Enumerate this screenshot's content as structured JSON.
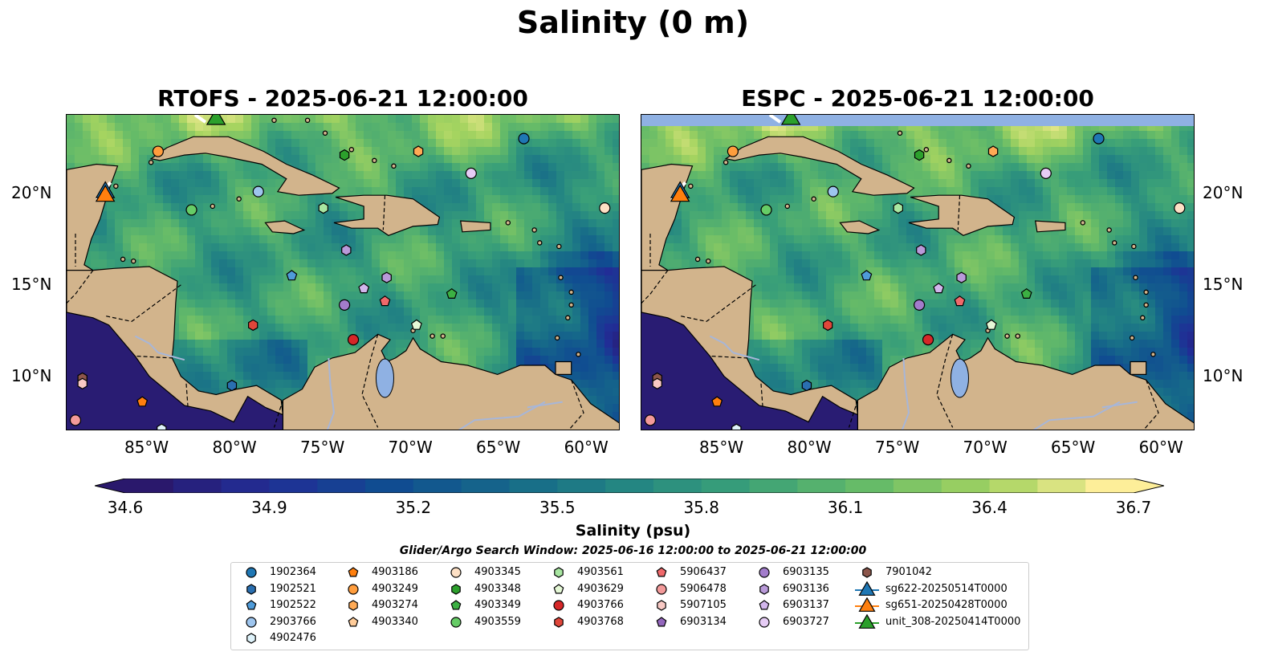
{
  "figure": {
    "suptitle": "Salinity (0 m)",
    "panels": [
      {
        "title": "RTOFS - 2025-06-21 12:00:00",
        "model": "RTOFS"
      },
      {
        "title": "ESPC - 2025-06-21 12:00:00",
        "model": "ESPC"
      }
    ],
    "lon_labels": [
      "85°W",
      "80°W",
      "75°W",
      "70°W",
      "65°W",
      "60°W"
    ],
    "lat_labels": [
      "20°N",
      "15°N",
      "10°N"
    ],
    "map_extent": {
      "lon": [
        -89.7,
        -58.2
      ],
      "lat": [
        7,
        24.3
      ]
    },
    "colorbar": {
      "title": "Salinity (psu)",
      "tick_labels": [
        "34.6",
        "34.9",
        "35.2",
        "35.5",
        "35.8",
        "36.1",
        "36.4",
        "36.7"
      ],
      "range": [
        34.6,
        36.7
      ],
      "colormap": "haline",
      "extend": "both"
    },
    "search_window": "Glider/Argo Search Window: 2025-06-16 12:00:00 to 2025-06-21 12:00:00",
    "colors": {
      "land": "#d2b48c",
      "lakes": "#8fb1e3",
      "water_fill_top_espc": "#8fb1e3"
    }
  },
  "legend": {
    "items": [
      {
        "id": "1902364",
        "marker": "circle",
        "color": "#1f77b4"
      },
      {
        "id": "1902521",
        "marker": "hexagon",
        "color": "#2a6fb0"
      },
      {
        "id": "1902522",
        "marker": "pentagon",
        "color": "#4f9bd9"
      },
      {
        "id": "2903766",
        "marker": "circle",
        "color": "#9ec5ee"
      },
      {
        "id": "4902476",
        "marker": "hexagon",
        "color": "#dff3fb"
      },
      {
        "id": "4903186",
        "marker": "pentagon",
        "color": "#ff7f0e"
      },
      {
        "id": "4903249",
        "marker": "circle",
        "color": "#ff9d3d"
      },
      {
        "id": "4903274",
        "marker": "hexagon",
        "color": "#ffaa55"
      },
      {
        "id": "4903340",
        "marker": "pentagon",
        "color": "#ffcc99"
      },
      {
        "id": "4903345",
        "marker": "circle",
        "color": "#fde0c5"
      },
      {
        "id": "4903348",
        "marker": "hexagon",
        "color": "#2ca02c"
      },
      {
        "id": "4903349",
        "marker": "pentagon",
        "color": "#3cb043"
      },
      {
        "id": "4903559",
        "marker": "circle",
        "color": "#66cc66"
      },
      {
        "id": "4903561",
        "marker": "hexagon",
        "color": "#a8e6a1"
      },
      {
        "id": "4903629",
        "marker": "pentagon",
        "color": "#e5f8d6"
      },
      {
        "id": "4903766",
        "marker": "circle",
        "color": "#d62728"
      },
      {
        "id": "4903768",
        "marker": "hexagon",
        "color": "#e0463a"
      },
      {
        "id": "5906437",
        "marker": "pentagon",
        "color": "#f0696b"
      },
      {
        "id": "5906478",
        "marker": "circle",
        "color": "#f39a9a"
      },
      {
        "id": "5907105",
        "marker": "hexagon",
        "color": "#f8c9c4"
      },
      {
        "id": "6903134",
        "marker": "pentagon",
        "color": "#9467bd"
      },
      {
        "id": "6903135",
        "marker": "circle",
        "color": "#a27ccb"
      },
      {
        "id": "6903136",
        "marker": "hexagon",
        "color": "#b99ad9"
      },
      {
        "id": "6903137",
        "marker": "pentagon",
        "color": "#d2b6ec"
      },
      {
        "id": "6903727",
        "marker": "circle",
        "color": "#e6ccf5"
      },
      {
        "id": "7901042",
        "marker": "hexagon",
        "color": "#8c564b"
      },
      {
        "id": "sg622-20250514T0000",
        "marker": "triangle-line",
        "color": "#1f77b4"
      },
      {
        "id": "sg651-20250428T0000",
        "marker": "triangle-line",
        "color": "#ff7f0e"
      },
      {
        "id": "unit_308-20250414T0000",
        "marker": "triangle-line",
        "color": "#2ca02c"
      }
    ]
  },
  "observations": [
    {
      "id": "1902364",
      "lon": -63.7,
      "lat": 23.0
    },
    {
      "id": "4903249",
      "lon": -84.5,
      "lat": 22.3
    },
    {
      "id": "4903348",
      "lon": -73.9,
      "lat": 22.1
    },
    {
      "id": "4903274",
      "lon": -69.7,
      "lat": 22.3
    },
    {
      "id": "6903727",
      "lon": -66.7,
      "lat": 21.1
    },
    {
      "id": "2903766",
      "lon": -78.8,
      "lat": 20.1
    },
    {
      "id": "4903559",
      "lon": -82.6,
      "lat": 19.1
    },
    {
      "id": "4903561",
      "lon": -75.1,
      "lat": 19.2
    },
    {
      "id": "4903345",
      "lon": -59.1,
      "lat": 19.2
    },
    {
      "id": "6903136",
      "lon": -73.8,
      "lat": 16.9
    },
    {
      "id": "1902522",
      "lon": -76.9,
      "lat": 15.5
    },
    {
      "id": "6903137",
      "lon": -72.8,
      "lat": 14.8
    },
    {
      "id": "6903136",
      "lon": -71.5,
      "lat": 15.4
    },
    {
      "id": "5906437",
      "lon": -71.6,
      "lat": 14.1
    },
    {
      "id": "4903349",
      "lon": -67.8,
      "lat": 14.5
    },
    {
      "id": "6903135",
      "lon": -73.9,
      "lat": 13.9
    },
    {
      "id": "4903768",
      "lon": -79.1,
      "lat": 12.8
    },
    {
      "id": "4903629",
      "lon": -69.8,
      "lat": 12.8
    },
    {
      "id": "4903766",
      "lon": -73.4,
      "lat": 12.0
    },
    {
      "id": "1902521",
      "lon": -80.3,
      "lat": 9.5
    },
    {
      "id": "7901042",
      "lon": -88.8,
      "lat": 9.9
    },
    {
      "id": "5907105",
      "lon": -88.8,
      "lat": 9.6
    },
    {
      "id": "4903186",
      "lon": -85.4,
      "lat": 8.6
    },
    {
      "id": "5906478",
      "lon": -89.2,
      "lat": 7.6
    },
    {
      "id": "4902476",
      "lon": -84.3,
      "lat": 7.1
    }
  ],
  "gliders": [
    {
      "id": "sg622-20250514T0000",
      "lon": -87.5,
      "lat": 20.2
    },
    {
      "id": "sg651-20250428T0000",
      "lon": -87.5,
      "lat": 20.0
    },
    {
      "id": "unit_308-20250414T0000",
      "lon": -81.2,
      "lat": 24.2
    }
  ]
}
